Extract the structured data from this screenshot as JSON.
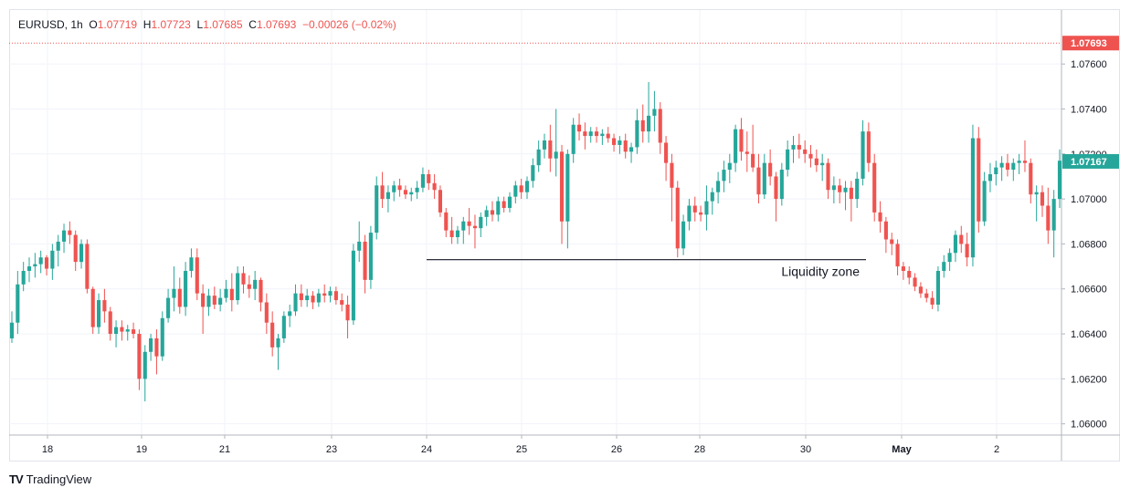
{
  "header": {
    "symbol": "EURUSD",
    "interval": "1h",
    "open_label": "O",
    "open": "1.07719",
    "high_label": "H",
    "high": "1.07723",
    "low_label": "L",
    "low": "1.07685",
    "close_label": "C",
    "close": "1.07693",
    "change": "−0.00026 (−0.02%)"
  },
  "footer": {
    "brand": "TradingView"
  },
  "colors": {
    "up": "#26a69a",
    "down": "#ef5350",
    "grid": "#f0f3fa",
    "text": "#131722"
  },
  "chart_data": {
    "type": "candlestick",
    "ylim": [
      1.0595,
      1.0784
    ],
    "y_ticks": [
      "1.06000",
      "1.06200",
      "1.06400",
      "1.06600",
      "1.06800",
      "1.07000",
      "1.07200",
      "1.07400",
      "1.07600"
    ],
    "x_tick_labels": [
      "18",
      "19",
      "21",
      "23",
      "24",
      "25",
      "26",
      "28",
      "30",
      "May",
      "2"
    ],
    "price_labels": [
      {
        "value": 1.07693,
        "text": "1.07693",
        "color": "#ef5350"
      },
      {
        "value": 1.07167,
        "text": "1.07167",
        "color": "#26a69a"
      }
    ],
    "annotation": {
      "text": "Liquidity zone",
      "level": 1.0673
    },
    "ohlc": [
      [
        1.0638,
        1.065,
        1.0636,
        1.0645
      ],
      [
        1.0645,
        1.0668,
        1.064,
        1.0662
      ],
      [
        1.0662,
        1.0672,
        1.0659,
        1.0668
      ],
      [
        1.0668,
        1.0674,
        1.0663,
        1.067
      ],
      [
        1.067,
        1.0676,
        1.0665,
        1.0671
      ],
      [
        1.0671,
        1.0677,
        1.0667,
        1.0674
      ],
      [
        1.0674,
        1.0675,
        1.0666,
        1.0669
      ],
      [
        1.0669,
        1.068,
        1.0664,
        1.0677
      ],
      [
        1.0677,
        1.0684,
        1.067,
        1.0681
      ],
      [
        1.0681,
        1.0689,
        1.0676,
        1.0686
      ],
      [
        1.0686,
        1.069,
        1.068,
        1.0684
      ],
      [
        1.0684,
        1.0686,
        1.0668,
        1.0672
      ],
      [
        1.0672,
        1.0682,
        1.0669,
        1.068
      ],
      [
        1.068,
        1.0682,
        1.0658,
        1.066
      ],
      [
        1.066,
        1.0661,
        1.064,
        1.0643
      ],
      [
        1.0643,
        1.0658,
        1.064,
        1.0655
      ],
      [
        1.0655,
        1.066,
        1.0645,
        1.065
      ],
      [
        1.065,
        1.0652,
        1.0637,
        1.064
      ],
      [
        1.064,
        1.0646,
        1.0634,
        1.0643
      ],
      [
        1.0643,
        1.0646,
        1.0637,
        1.0641
      ],
      [
        1.0641,
        1.0644,
        1.0637,
        1.0642
      ],
      [
        1.0642,
        1.0645,
        1.0638,
        1.064
      ],
      [
        1.064,
        1.0642,
        1.0615,
        1.062
      ],
      [
        1.062,
        1.0635,
        1.061,
        1.0632
      ],
      [
        1.0632,
        1.064,
        1.0628,
        1.0638
      ],
      [
        1.0638,
        1.0642,
        1.0622,
        1.063
      ],
      [
        1.063,
        1.065,
        1.0628,
        1.0647
      ],
      [
        1.0647,
        1.066,
        1.0645,
        1.0656
      ],
      [
        1.0656,
        1.067,
        1.065,
        1.066
      ],
      [
        1.066,
        1.0665,
        1.0649,
        1.0652
      ],
      [
        1.0652,
        1.0672,
        1.0648,
        1.0668
      ],
      [
        1.0668,
        1.0678,
        1.0665,
        1.0674
      ],
      [
        1.0674,
        1.0678,
        1.0655,
        1.0658
      ],
      [
        1.0658,
        1.0662,
        1.064,
        1.0652
      ],
      [
        1.0652,
        1.066,
        1.0648,
        1.0657
      ],
      [
        1.0657,
        1.0661,
        1.0651,
        1.0653
      ],
      [
        1.0653,
        1.066,
        1.065,
        1.0656
      ],
      [
        1.0656,
        1.0664,
        1.0654,
        1.066
      ],
      [
        1.066,
        1.0667,
        1.065,
        1.0655
      ],
      [
        1.0655,
        1.067,
        1.0653,
        1.0667
      ],
      [
        1.0667,
        1.067,
        1.0658,
        1.0662
      ],
      [
        1.0662,
        1.0666,
        1.0656,
        1.066
      ],
      [
        1.066,
        1.0668,
        1.0655,
        1.0664
      ],
      [
        1.0664,
        1.0665,
        1.065,
        1.0654
      ],
      [
        1.0654,
        1.0658,
        1.064,
        1.0645
      ],
      [
        1.0645,
        1.065,
        1.063,
        1.0634
      ],
      [
        1.0634,
        1.064,
        1.0624,
        1.0638
      ],
      [
        1.0638,
        1.065,
        1.0636,
        1.0648
      ],
      [
        1.0648,
        1.0653,
        1.0643,
        1.065
      ],
      [
        1.065,
        1.0662,
        1.0648,
        1.0658
      ],
      [
        1.0658,
        1.0662,
        1.0652,
        1.0655
      ],
      [
        1.0655,
        1.066,
        1.0652,
        1.0657
      ],
      [
        1.0657,
        1.0659,
        1.0651,
        1.0654
      ],
      [
        1.0654,
        1.066,
        1.0652,
        1.0658
      ],
      [
        1.0658,
        1.0662,
        1.0654,
        1.0657
      ],
      [
        1.0657,
        1.0661,
        1.0654,
        1.0659
      ],
      [
        1.0659,
        1.0661,
        1.0653,
        1.0655
      ],
      [
        1.0655,
        1.0658,
        1.065,
        1.0653
      ],
      [
        1.0653,
        1.0657,
        1.0638,
        1.0646
      ],
      [
        1.0646,
        1.068,
        1.0644,
        1.0677
      ],
      [
        1.0677,
        1.069,
        1.0672,
        1.0681
      ],
      [
        1.0681,
        1.0684,
        1.0658,
        1.0664
      ],
      [
        1.0664,
        1.0688,
        1.066,
        1.0685
      ],
      [
        1.0685,
        1.071,
        1.0682,
        1.0706
      ],
      [
        1.0706,
        1.0712,
        1.0696,
        1.07
      ],
      [
        1.07,
        1.0706,
        1.0694,
        1.0703
      ],
      [
        1.0703,
        1.0708,
        1.0699,
        1.0706
      ],
      [
        1.0706,
        1.0709,
        1.0701,
        1.0704
      ],
      [
        1.0704,
        1.0706,
        1.07,
        1.0702
      ],
      [
        1.0702,
        1.0705,
        1.0699,
        1.0703
      ],
      [
        1.0703,
        1.0708,
        1.07,
        1.0705
      ],
      [
        1.0705,
        1.0714,
        1.0703,
        1.0711
      ],
      [
        1.0711,
        1.0713,
        1.0704,
        1.0707
      ],
      [
        1.0707,
        1.0711,
        1.07,
        1.0704
      ],
      [
        1.0704,
        1.0706,
        1.0692,
        1.0694
      ],
      [
        1.0694,
        1.0696,
        1.0683,
        1.0686
      ],
      [
        1.0686,
        1.0692,
        1.068,
        1.0683
      ],
      [
        1.0683,
        1.0688,
        1.068,
        1.0686
      ],
      [
        1.0686,
        1.0692,
        1.068,
        1.069
      ],
      [
        1.069,
        1.0696,
        1.0684,
        1.0688
      ],
      [
        1.0688,
        1.0693,
        1.0678,
        1.0687
      ],
      [
        1.0687,
        1.0694,
        1.0683,
        1.0692
      ],
      [
        1.0692,
        1.0697,
        1.0688,
        1.0695
      ],
      [
        1.0695,
        1.0699,
        1.069,
        1.0693
      ],
      [
        1.0693,
        1.0701,
        1.069,
        1.0699
      ],
      [
        1.0699,
        1.0701,
        1.0694,
        1.0696
      ],
      [
        1.0696,
        1.0703,
        1.0694,
        1.0701
      ],
      [
        1.0701,
        1.0708,
        1.0698,
        1.0706
      ],
      [
        1.0706,
        1.0709,
        1.07,
        1.0703
      ],
      [
        1.0703,
        1.071,
        1.07,
        1.0708
      ],
      [
        1.0708,
        1.0718,
        1.0705,
        1.0715
      ],
      [
        1.0715,
        1.0726,
        1.0712,
        1.0722
      ],
      [
        1.0722,
        1.0729,
        1.0718,
        1.0726
      ],
      [
        1.0726,
        1.0733,
        1.0712,
        1.0718
      ],
      [
        1.0718,
        1.074,
        1.071,
        1.0721
      ],
      [
        1.0721,
        1.0724,
        1.068,
        1.069
      ],
      [
        1.069,
        1.0722,
        1.0678,
        1.072
      ],
      [
        1.072,
        1.0736,
        1.0716,
        1.0733
      ],
      [
        1.0733,
        1.0738,
        1.0726,
        1.073
      ],
      [
        1.073,
        1.0734,
        1.0722,
        1.0728
      ],
      [
        1.0728,
        1.0732,
        1.0725,
        1.073
      ],
      [
        1.073,
        1.0732,
        1.0725,
        1.0728
      ],
      [
        1.0728,
        1.0731,
        1.0724,
        1.0729
      ],
      [
        1.0729,
        1.0732,
        1.0725,
        1.0727
      ],
      [
        1.0727,
        1.0729,
        1.0721,
        1.0724
      ],
      [
        1.0724,
        1.0728,
        1.072,
        1.0726
      ],
      [
        1.0726,
        1.0729,
        1.0718,
        1.0721
      ],
      [
        1.0721,
        1.0725,
        1.0716,
        1.0723
      ],
      [
        1.0723,
        1.074,
        1.072,
        1.0735
      ],
      [
        1.0735,
        1.0742,
        1.0725,
        1.073
      ],
      [
        1.073,
        1.0752,
        1.0725,
        1.0737
      ],
      [
        1.0737,
        1.0748,
        1.073,
        1.074
      ],
      [
        1.074,
        1.0743,
        1.072,
        1.0725
      ],
      [
        1.0725,
        1.0728,
        1.0708,
        1.0716
      ],
      [
        1.0716,
        1.072,
        1.069,
        1.0705
      ],
      [
        1.0705,
        1.0708,
        1.0674,
        1.0678
      ],
      [
        1.0678,
        1.0693,
        1.0675,
        1.069
      ],
      [
        1.069,
        1.07,
        1.0686,
        1.0697
      ],
      [
        1.0697,
        1.0701,
        1.069,
        1.0694
      ],
      [
        1.0694,
        1.0697,
        1.069,
        1.0693
      ],
      [
        1.0693,
        1.0706,
        1.0686,
        1.0699
      ],
      [
        1.0699,
        1.0705,
        1.0693,
        1.0703
      ],
      [
        1.0703,
        1.0712,
        1.0698,
        1.0708
      ],
      [
        1.0708,
        1.0717,
        1.0703,
        1.0713
      ],
      [
        1.0713,
        1.072,
        1.0707,
        1.0716
      ],
      [
        1.0716,
        1.0733,
        1.0712,
        1.0731
      ],
      [
        1.0731,
        1.0736,
        1.0717,
        1.0721
      ],
      [
        1.0721,
        1.073,
        1.0712,
        1.072
      ],
      [
        1.072,
        1.0733,
        1.0712,
        1.0714
      ],
      [
        1.0714,
        1.072,
        1.0698,
        1.0702
      ],
      [
        1.0702,
        1.072,
        1.07,
        1.0716
      ],
      [
        1.0716,
        1.0722,
        1.0706,
        1.071
      ],
      [
        1.071,
        1.0712,
        1.069,
        1.07
      ],
      [
        1.07,
        1.0716,
        1.0697,
        1.0713
      ],
      [
        1.0713,
        1.0726,
        1.071,
        1.0722
      ],
      [
        1.0722,
        1.0728,
        1.0716,
        1.0724
      ],
      [
        1.0724,
        1.0729,
        1.0718,
        1.0722
      ],
      [
        1.0722,
        1.0726,
        1.0716,
        1.072
      ],
      [
        1.072,
        1.0724,
        1.0714,
        1.0718
      ],
      [
        1.0718,
        1.0722,
        1.0712,
        1.0715
      ],
      [
        1.0715,
        1.072,
        1.0708,
        1.0716
      ],
      [
        1.0716,
        1.0718,
        1.07,
        1.0704
      ],
      [
        1.0704,
        1.071,
        1.0698,
        1.0706
      ],
      [
        1.0706,
        1.0709,
        1.0698,
        1.0703
      ],
      [
        1.0703,
        1.0708,
        1.0695,
        1.0705
      ],
      [
        1.0705,
        1.0708,
        1.069,
        1.07
      ],
      [
        1.07,
        1.0712,
        1.0696,
        1.0709
      ],
      [
        1.0709,
        1.0735,
        1.0706,
        1.073
      ],
      [
        1.073,
        1.0734,
        1.0712,
        1.0716
      ],
      [
        1.0716,
        1.072,
        1.069,
        1.0694
      ],
      [
        1.0694,
        1.0699,
        1.0685,
        1.069
      ],
      [
        1.069,
        1.0692,
        1.0676,
        1.0682
      ],
      [
        1.0682,
        1.0685,
        1.0675,
        1.068
      ],
      [
        1.068,
        1.0682,
        1.0666,
        1.067
      ],
      [
        1.067,
        1.0672,
        1.0664,
        1.0668
      ],
      [
        1.0668,
        1.067,
        1.0662,
        1.0665
      ],
      [
        1.0665,
        1.0667,
        1.0659,
        1.0661
      ],
      [
        1.0661,
        1.0663,
        1.0656,
        1.0658
      ],
      [
        1.0658,
        1.066,
        1.0654,
        1.0656
      ],
      [
        1.0656,
        1.0659,
        1.0651,
        1.0653
      ],
      [
        1.0653,
        1.067,
        1.065,
        1.0668
      ],
      [
        1.0668,
        1.0675,
        1.0665,
        1.0672
      ],
      [
        1.0672,
        1.0678,
        1.0668,
        1.0676
      ],
      [
        1.0676,
        1.0686,
        1.0672,
        1.0684
      ],
      [
        1.0684,
        1.0688,
        1.0676,
        1.068
      ],
      [
        1.068,
        1.0685,
        1.067,
        1.0674
      ],
      [
        1.0674,
        1.0733,
        1.067,
        1.0727
      ],
      [
        1.0727,
        1.0732,
        1.0685,
        1.069
      ],
      [
        1.069,
        1.0712,
        1.0688,
        1.0708
      ],
      [
        1.0708,
        1.0716,
        1.0703,
        1.0711
      ],
      [
        1.0711,
        1.0717,
        1.0706,
        1.0714
      ],
      [
        1.0714,
        1.0719,
        1.0708,
        1.0716
      ],
      [
        1.0716,
        1.072,
        1.071,
        1.0713
      ],
      [
        1.0713,
        1.0718,
        1.0708,
        1.0716
      ],
      [
        1.0716,
        1.072,
        1.0711,
        1.0717
      ],
      [
        1.0717,
        1.0726,
        1.0712,
        1.0716
      ],
      [
        1.0716,
        1.0718,
        1.0698,
        1.0702
      ],
      [
        1.0702,
        1.0706,
        1.069,
        1.0703
      ],
      [
        1.0703,
        1.0706,
        1.0692,
        1.0697
      ],
      [
        1.0697,
        1.0705,
        1.068,
        1.0686
      ],
      [
        1.0686,
        1.0704,
        1.0674,
        1.07
      ],
      [
        1.07,
        1.0722,
        1.0696,
        1.0717
      ]
    ]
  }
}
